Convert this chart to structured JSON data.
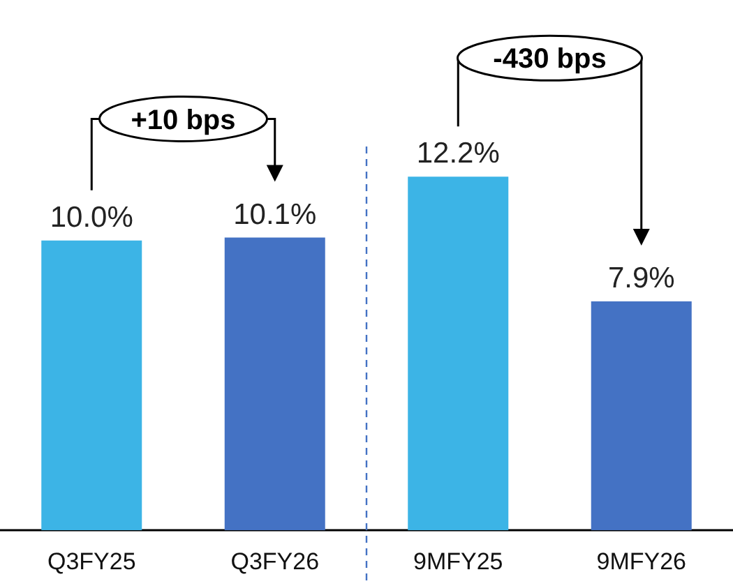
{
  "chart_data": {
    "type": "bar",
    "categories": [
      "Q3FY25",
      "Q3FY26",
      "9MFY25",
      "9MFY26"
    ],
    "values": [
      10.0,
      10.1,
      12.2,
      7.9
    ],
    "colors": [
      "#3cb4e6",
      "#4472c4",
      "#3cb4e6",
      "#4472c4"
    ],
    "value_labels": [
      "10.0%",
      "10.1%",
      "12.2%",
      "7.9%"
    ],
    "annotations": [
      "+10 bps",
      "-430 bps"
    ]
  }
}
